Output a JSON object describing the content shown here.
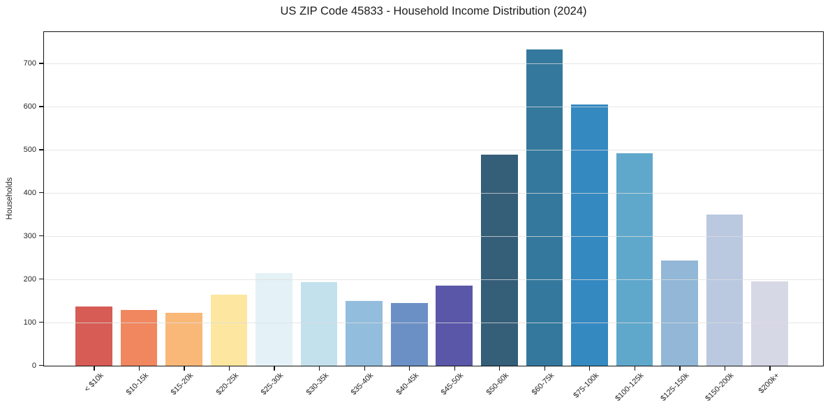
{
  "chart_data": {
    "type": "bar",
    "title": "US ZIP Code 45833 - Household Income Distribution (2024)",
    "xlabel": "",
    "ylabel": "Households",
    "categories": [
      "< $10k",
      "$10-15k",
      "$15-20k",
      "$20-25k",
      "$25-30k",
      "$30-35k",
      "$35-40k",
      "$40-45k",
      "$45-50k",
      "$50-60k",
      "$60-75k",
      "$75-100k",
      "$100-125k",
      "$125-150k",
      "$150-200k",
      "$200k+"
    ],
    "values": [
      138,
      130,
      122,
      165,
      215,
      194,
      150,
      146,
      186,
      489,
      734,
      605,
      492,
      244,
      350,
      195
    ],
    "bar_colors": [
      "#d65c55",
      "#f0875f",
      "#fab878",
      "#fde7a0",
      "#e4f1f6",
      "#c3e1ed",
      "#93bddc",
      "#6b90c6",
      "#5a57a8",
      "#355e78",
      "#34799d",
      "#3589c1",
      "#60a8cb",
      "#92b7d7",
      "#bac9e0",
      "#d6d8e5"
    ],
    "ylim": [
      0,
      772
    ],
    "yticks": [
      0,
      100,
      200,
      300,
      400,
      500,
      600,
      700
    ],
    "grid": "horizontal",
    "legend": "none",
    "background_color": "#ffffff",
    "spine_color": "#111111"
  }
}
